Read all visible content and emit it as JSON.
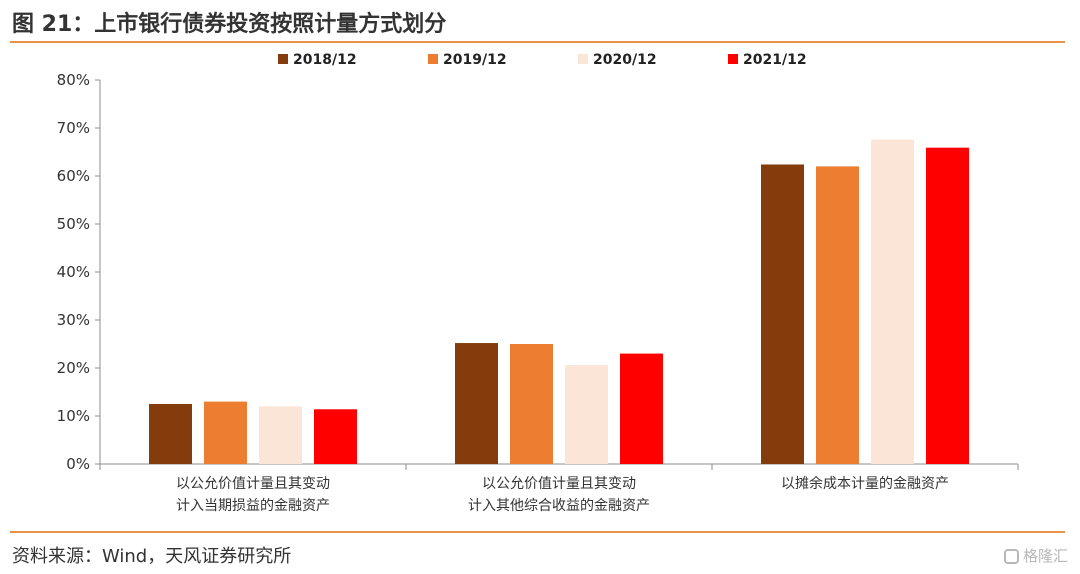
{
  "header": {
    "title": "图 21：上市银行债券投资按照计量方式划分"
  },
  "footer": {
    "source": "资料来源：Wind，天风证券研究所",
    "watermark": "格隆汇"
  },
  "chart_data": {
    "type": "bar",
    "categories": [
      [
        "以公允价值计量且其变动",
        "计入当期损益的金融资产"
      ],
      [
        "以公允价值计量且其变动",
        "计入其他综合收益的金融资产"
      ],
      [
        "以摊余成本计量的金融资产"
      ]
    ],
    "series": [
      {
        "name": "2018/12",
        "color": "#843c0c",
        "values": [
          12.5,
          25.2,
          62.4
        ]
      },
      {
        "name": "2019/12",
        "color": "#ed7d31",
        "values": [
          13.0,
          25.0,
          62.0
        ]
      },
      {
        "name": "2020/12",
        "color": "#fbe5d6",
        "values": [
          12.0,
          20.6,
          67.6
        ]
      },
      {
        "name": "2021/12",
        "color": "#ff0000",
        "values": [
          11.4,
          23.0,
          65.9
        ]
      }
    ],
    "y_ticks": [
      "0%",
      "10%",
      "20%",
      "30%",
      "40%",
      "50%",
      "60%",
      "70%",
      "80%"
    ],
    "ylim": [
      0,
      80
    ],
    "y_tick_step": 10,
    "legend_position": "top",
    "grid": false
  }
}
